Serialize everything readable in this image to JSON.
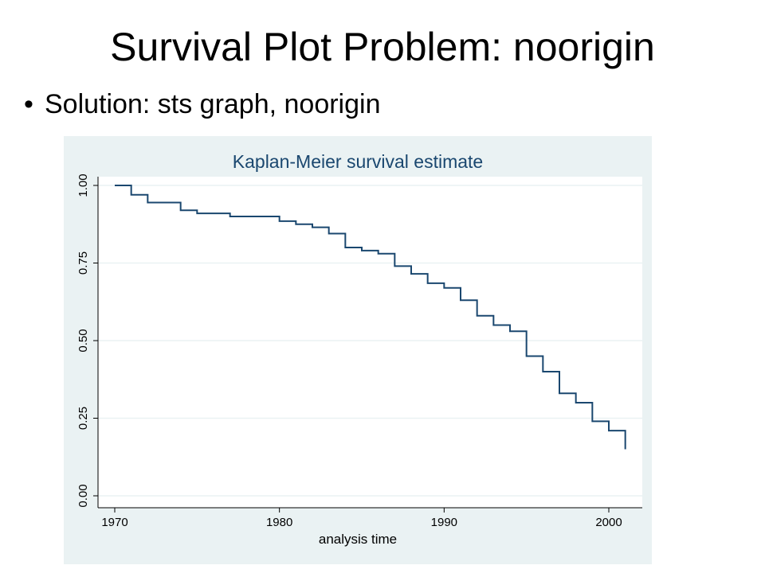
{
  "slide": {
    "title": "Survival Plot Problem:  noorigin",
    "bullet_marker": "•",
    "bullet": "Solution:  sts graph, noorigin"
  },
  "colors": {
    "plot_background": "#eaf2f3",
    "plot_region": "#ffffff",
    "line": "#1a476f",
    "title_text": "#1a476f",
    "grid": "#eaf2f3"
  },
  "chart_data": {
    "type": "line",
    "step": true,
    "title": "Kaplan-Meier survival estimate",
    "xlabel": "analysis time",
    "ylabel": "",
    "xlim": [
      1970,
      2001.5
    ],
    "ylim": [
      0,
      1
    ],
    "xticks": [
      1970,
      1980,
      1990,
      2000
    ],
    "yticks": [
      "0.00",
      "0.25",
      "0.50",
      "0.75",
      "1.00"
    ],
    "grid": true,
    "series": [
      {
        "x": [
          1970,
          1971,
          1972,
          1974,
          1975,
          1977,
          1980,
          1981,
          1982,
          1983,
          1984,
          1985,
          1986,
          1987,
          1988,
          1989,
          1990,
          1991,
          1992,
          1993,
          1994,
          1995,
          1996,
          1997,
          1998,
          1999,
          2000,
          2001
        ],
        "y": [
          1.0,
          0.97,
          0.945,
          0.92,
          0.91,
          0.9,
          0.885,
          0.875,
          0.865,
          0.845,
          0.8,
          0.79,
          0.78,
          0.74,
          0.715,
          0.685,
          0.67,
          0.63,
          0.58,
          0.55,
          0.53,
          0.45,
          0.4,
          0.33,
          0.3,
          0.24,
          0.21,
          0.15
        ]
      }
    ]
  }
}
